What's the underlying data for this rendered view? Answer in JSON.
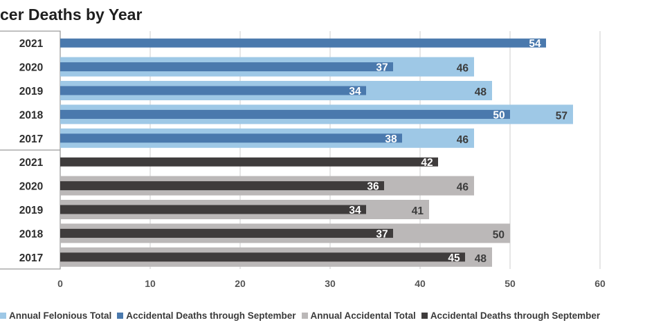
{
  "title": "cer Deaths by Year",
  "colors": {
    "felonious_total": "#9ec8e6",
    "felonious_sept": "#4a79ad",
    "accidental_total": "#bbb8b8",
    "accidental_sept": "#3f3c3c"
  },
  "legend": [
    {
      "label": "Annual Felonious Total",
      "color_key": "felonious_total"
    },
    {
      "label": "Accidental Deaths through September",
      "color_key": "felonious_sept"
    },
    {
      "label": "Annual Accidental Total",
      "color_key": "accidental_total"
    },
    {
      "label": "Accidental Deaths through September",
      "color_key": "accidental_sept"
    }
  ],
  "chart_data": {
    "type": "bar",
    "orientation": "horizontal",
    "title": "cer Deaths by Year",
    "categories": [
      "2021",
      "2020",
      "2019",
      "2018",
      "2017",
      "2021",
      "2020",
      "2019",
      "2018",
      "2017"
    ],
    "series": [
      {
        "name": "Annual Felonious Total",
        "color_key": "felonious_total",
        "values": [
          null,
          46,
          48,
          57,
          46,
          null,
          null,
          null,
          null,
          null
        ]
      },
      {
        "name": "Accidental Deaths through September",
        "color_key": "felonious_sept",
        "values": [
          54,
          37,
          34,
          50,
          38,
          null,
          null,
          null,
          null,
          null
        ]
      },
      {
        "name": "Annual Accidental Total",
        "color_key": "accidental_total",
        "values": [
          null,
          null,
          null,
          null,
          null,
          null,
          46,
          41,
          50,
          48
        ]
      },
      {
        "name": "Accidental Deaths through September",
        "color_key": "accidental_sept",
        "values": [
          null,
          null,
          null,
          null,
          null,
          42,
          36,
          34,
          37,
          45
        ]
      }
    ],
    "xlim": [
      0,
      60
    ],
    "xticks": [
      0,
      10,
      20,
      30,
      40,
      50,
      60
    ],
    "grid": true,
    "legend_position": "bottom"
  }
}
